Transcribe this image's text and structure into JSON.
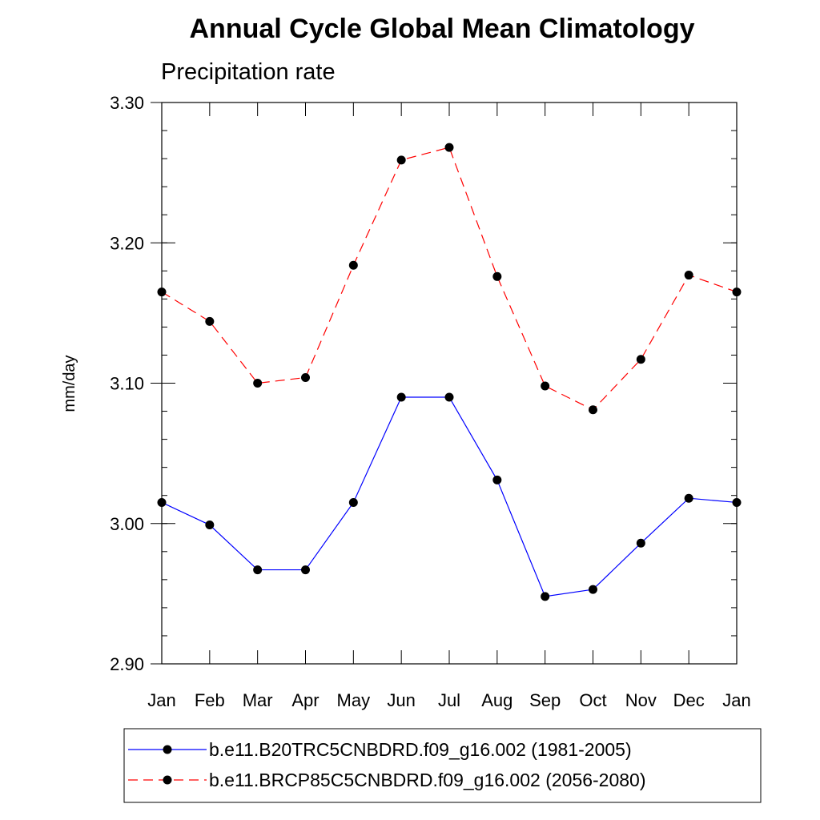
{
  "chart_data": {
    "type": "line",
    "title": "Annual Cycle Global Mean Climatology",
    "subtitle": "Precipitation rate",
    "xlabel": "",
    "ylabel": "mm/day",
    "categories": [
      "Jan",
      "Feb",
      "Mar",
      "Apr",
      "May",
      "Jun",
      "Jul",
      "Aug",
      "Sep",
      "Oct",
      "Nov",
      "Dec",
      "Jan"
    ],
    "ylim": [
      2.9,
      3.3
    ],
    "yticks": [
      2.9,
      3.0,
      3.1,
      3.2,
      3.3
    ],
    "ytick_labels": [
      "2.90",
      "3.00",
      "3.10",
      "3.20",
      "3.30"
    ],
    "grid": false,
    "legend_position": "bottom",
    "series": [
      {
        "name": "b.e11.B20TRC5CNBDRD.f09_g16.002 (1981-2005)",
        "color": "#0000ff",
        "dash": "solid",
        "values": [
          3.015,
          2.999,
          2.967,
          2.967,
          3.015,
          3.09,
          3.09,
          3.031,
          2.948,
          2.953,
          2.986,
          3.018,
          3.015
        ]
      },
      {
        "name": "b.e11.BRCP85C5CNBDRD.f09_g16.002 (2056-2080)",
        "color": "#ff0000",
        "dash": "dashed",
        "values": [
          3.165,
          3.144,
          3.1,
          3.104,
          3.184,
          3.259,
          3.268,
          3.176,
          3.098,
          3.081,
          3.117,
          3.177,
          3.165
        ]
      }
    ]
  }
}
